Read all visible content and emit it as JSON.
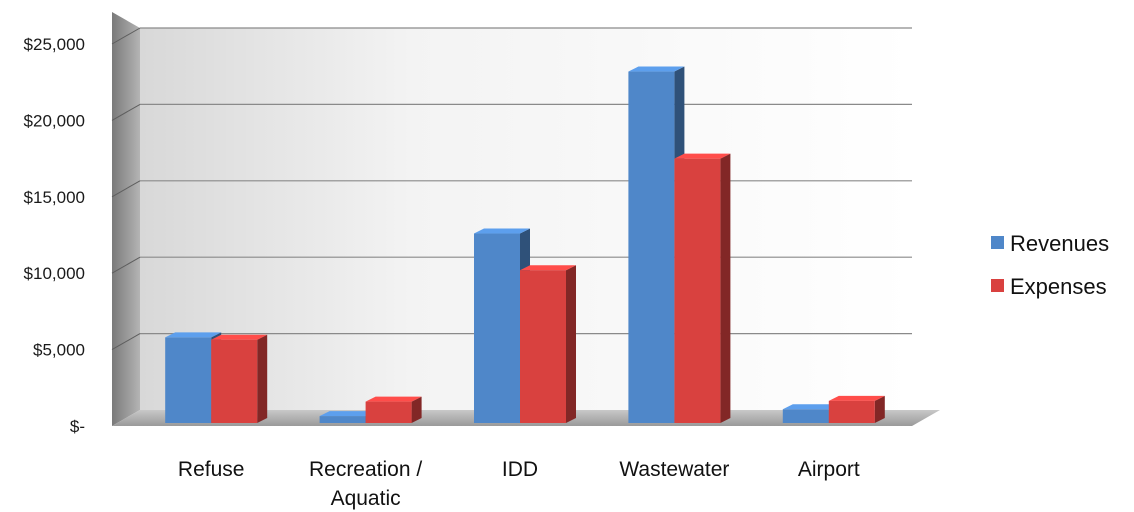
{
  "chart_data": {
    "type": "bar",
    "categories": [
      [
        "Refuse"
      ],
      [
        "Recreation /",
        "Aquatic"
      ],
      [
        "IDD"
      ],
      [
        "Wastewater"
      ],
      [
        "Airport"
      ]
    ],
    "series": [
      {
        "name": "Revenues",
        "color": "#4f87c9",
        "values": [
          5600,
          450,
          12400,
          23000,
          900
        ]
      },
      {
        "name": "Expenses",
        "color": "#d9413f",
        "values": [
          5450,
          1400,
          10000,
          17300,
          1450
        ]
      }
    ],
    "yticks": [
      {
        "value": 0,
        "label": "$-"
      },
      {
        "value": 5000,
        "label": "$5,000"
      },
      {
        "value": 10000,
        "label": "$10,000"
      },
      {
        "value": 15000,
        "label": "$15,000"
      },
      {
        "value": 20000,
        "label": "$20,000"
      },
      {
        "value": 25000,
        "label": "$25,000"
      }
    ],
    "ylim": [
      0,
      25000
    ],
    "grid": true,
    "legend_position": "right",
    "three_d": true,
    "title": "",
    "xlabel": "",
    "ylabel": ""
  }
}
